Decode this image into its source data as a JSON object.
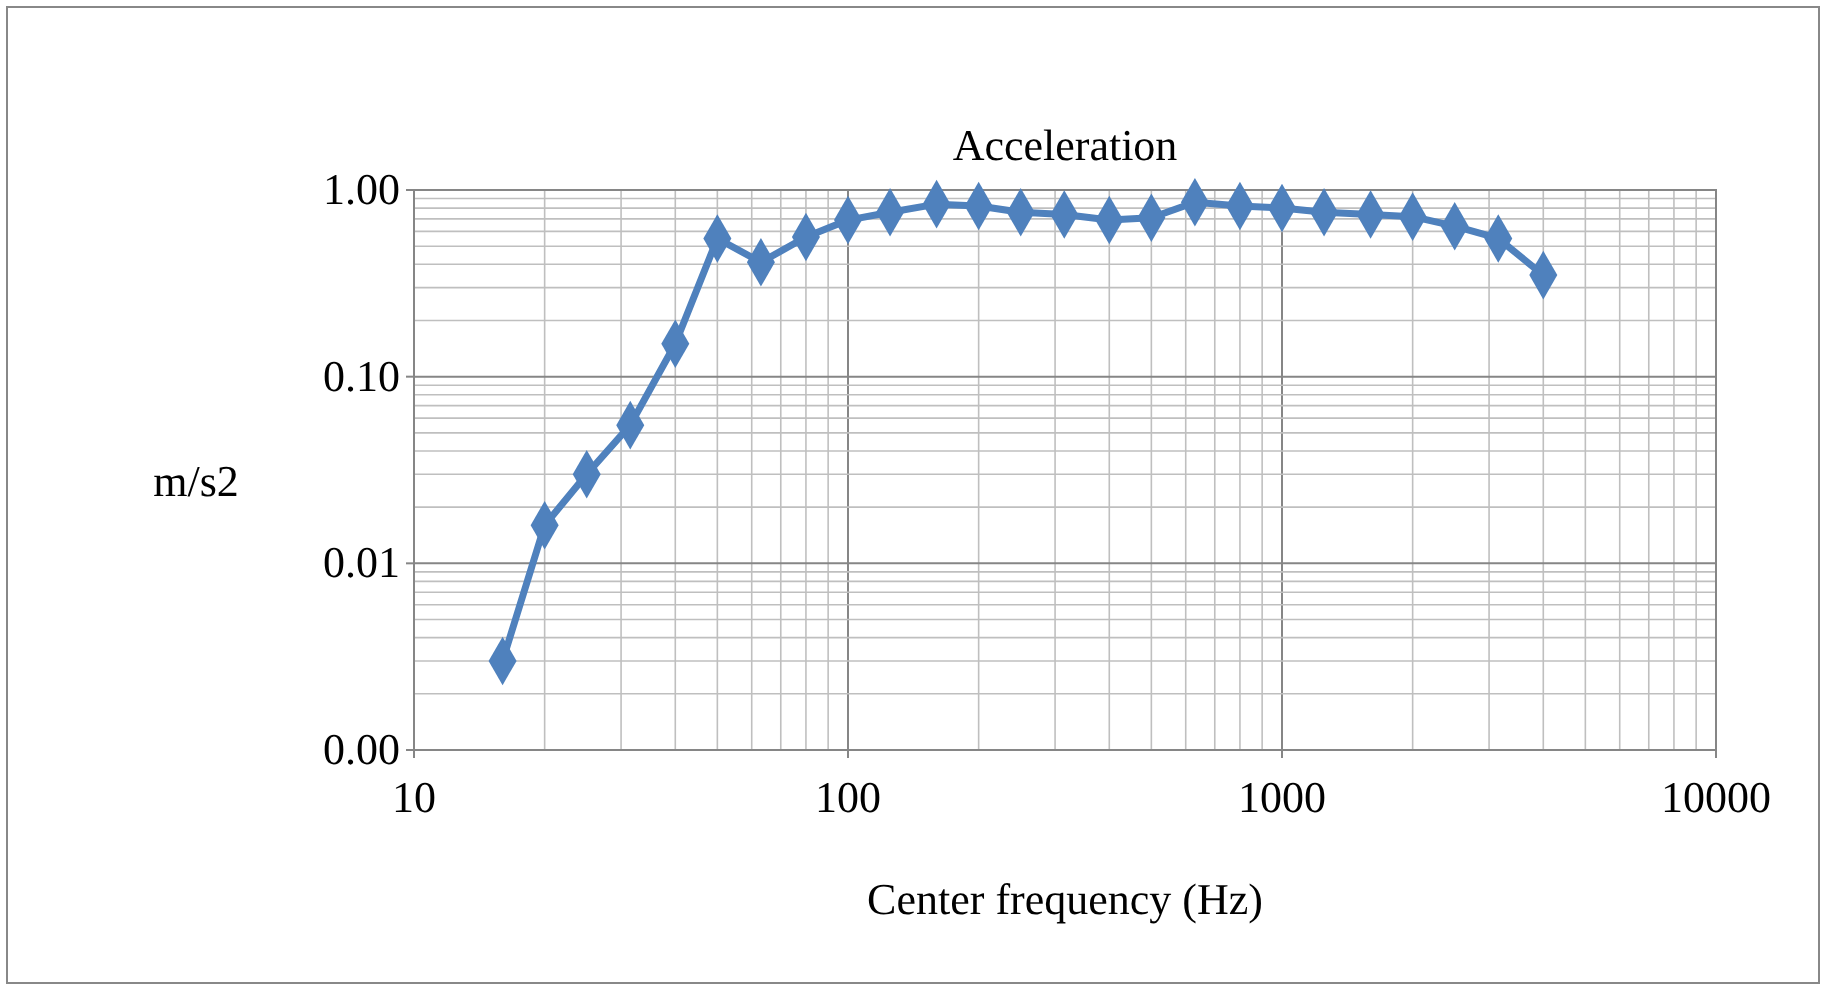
{
  "chart_data": {
    "type": "line",
    "title": "Acceleration",
    "xlabel": "Center frequency (Hz)",
    "ylabel": "m/s2",
    "x": [
      16,
      20,
      25,
      31.5,
      40,
      50,
      63,
      80,
      100,
      125,
      160,
      200,
      250,
      315,
      400,
      500,
      630,
      800,
      1000,
      1250,
      1600,
      2000,
      2500,
      3150,
      4000
    ],
    "series": [
      {
        "color": "#4f81bd",
        "values": [
          0.003,
          0.016,
          0.03,
          0.055,
          0.15,
          0.55,
          0.41,
          0.56,
          0.69,
          0.76,
          0.84,
          0.82,
          0.76,
          0.74,
          0.69,
          0.71,
          0.86,
          0.82,
          0.8,
          0.76,
          0.74,
          0.72,
          0.64,
          0.55,
          0.35
        ]
      }
    ],
    "log": "xy",
    "xlim": [
      10,
      10000
    ],
    "ylim": [
      0.001,
      1
    ],
    "xticks": [
      10,
      100,
      1000,
      10000
    ],
    "yticks": [
      {
        "value": 0.001,
        "label": "0.00"
      },
      {
        "value": 0.01,
        "label": "0.01"
      },
      {
        "value": 0.1,
        "label": "0.10"
      },
      {
        "value": 1,
        "label": "1.00"
      }
    ],
    "grid": true,
    "marker": "diamond",
    "line_style": "solid"
  }
}
